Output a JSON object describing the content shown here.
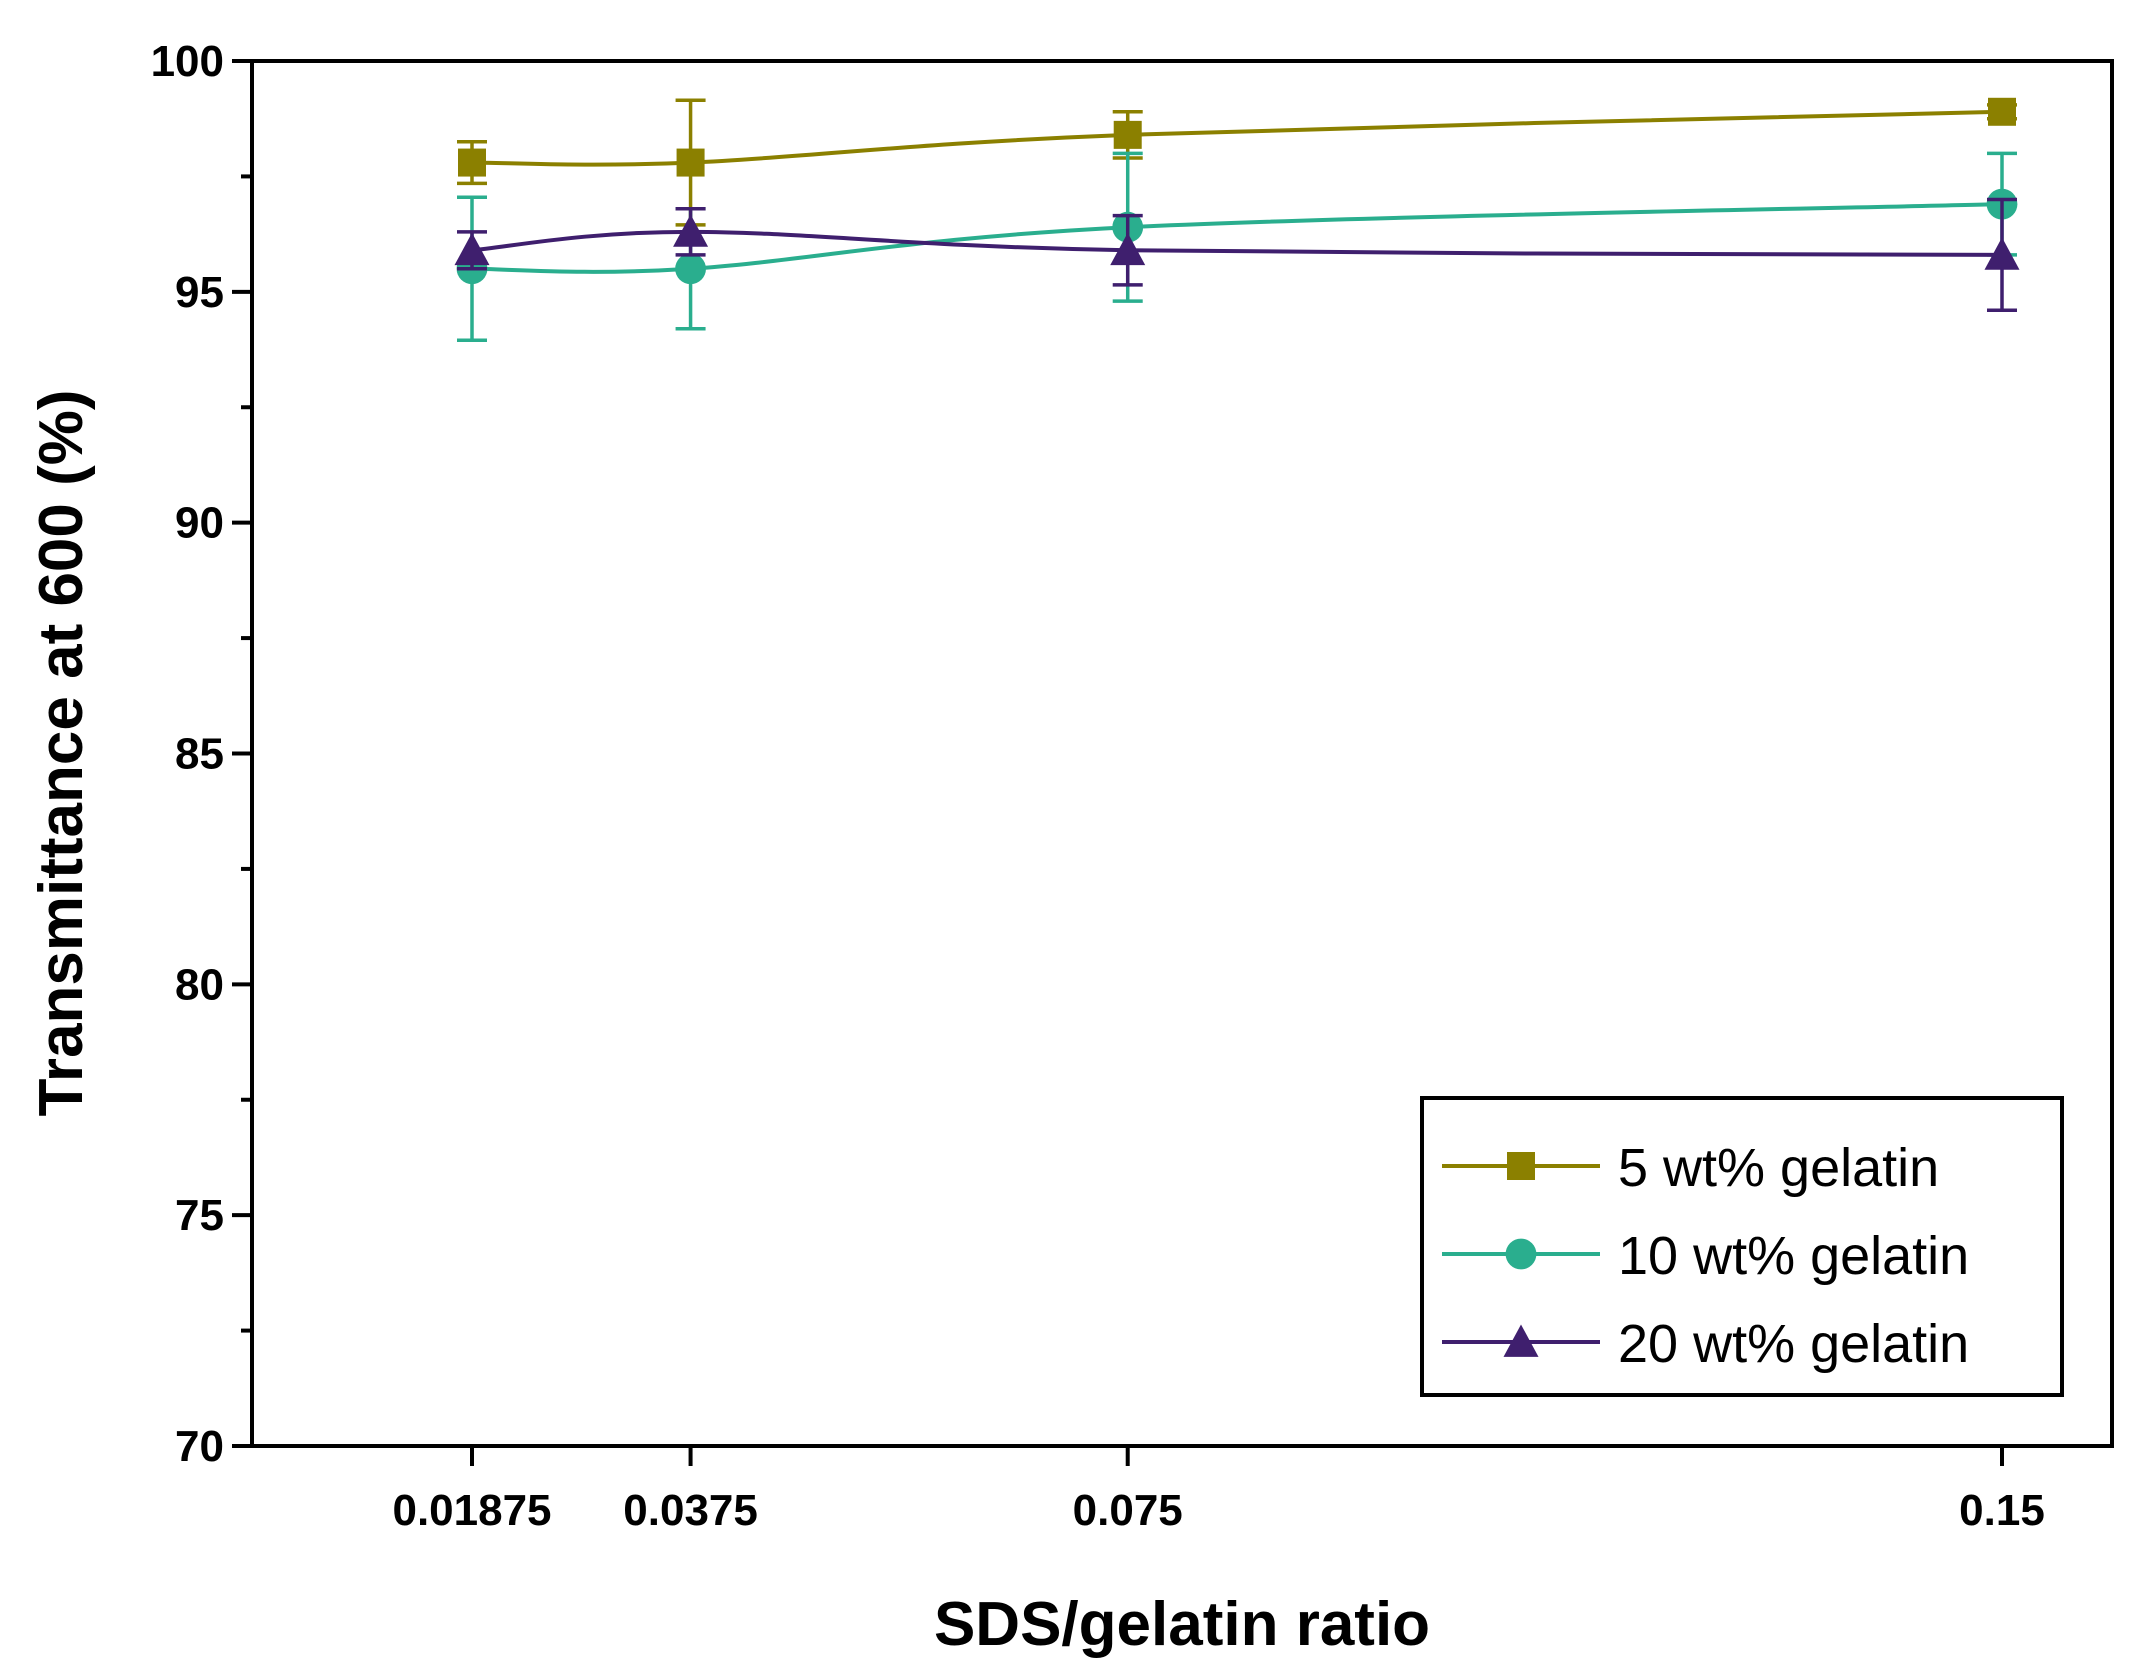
{
  "chart_data": {
    "type": "line",
    "title": "",
    "xlabel": "SDS/gelatin ratio",
    "ylabel": "Transmittance at 600 (%)",
    "x": [
      0.01875,
      0.0375,
      0.075,
      0.15
    ],
    "x_tick_labels": [
      "0.01875",
      "0.0375",
      "0.075",
      "0.15"
    ],
    "xlim": [
      0,
      0.16
    ],
    "ylim": [
      70,
      100
    ],
    "y_ticks": [
      70,
      75,
      80,
      85,
      90,
      95,
      100
    ],
    "y_tick_labels": [
      "70",
      "75",
      "80",
      "85",
      "90",
      "95",
      "100"
    ],
    "grid": false,
    "legend_position": "bottom-right",
    "series": [
      {
        "name": "5 wt% gelatin",
        "color": "#8b8000",
        "marker": "square",
        "values": [
          97.8,
          97.8,
          98.4,
          98.9
        ],
        "errors": [
          0.45,
          1.35,
          0.5,
          0.15
        ]
      },
      {
        "name": "10 wt% gelatin",
        "color": "#2aae8e",
        "marker": "circle",
        "values": [
          95.5,
          95.5,
          96.4,
          96.9
        ],
        "errors": [
          1.55,
          1.3,
          1.6,
          1.1
        ]
      },
      {
        "name": "20 wt% gelatin",
        "color": "#3f1f6e",
        "marker": "triangle",
        "values": [
          95.9,
          96.3,
          95.9,
          95.8
        ],
        "errors": [
          0.4,
          0.5,
          0.75,
          1.2
        ]
      }
    ]
  }
}
